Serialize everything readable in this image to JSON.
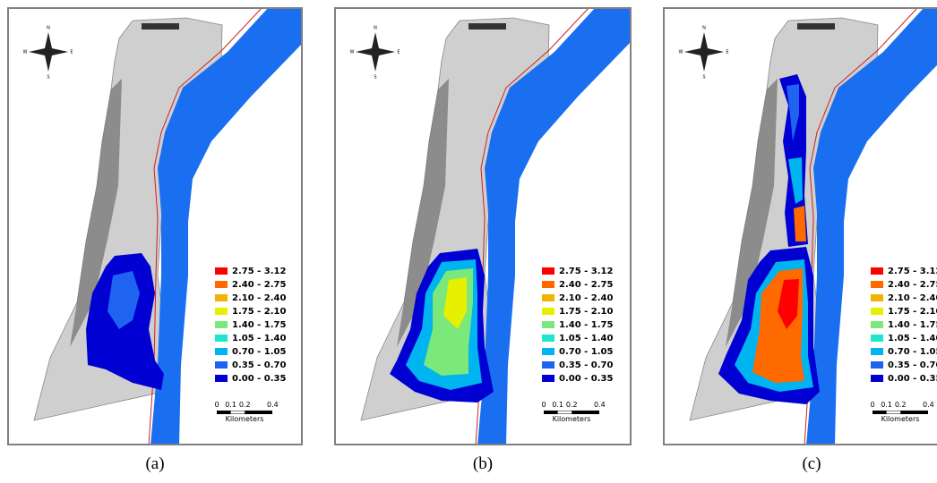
{
  "panels": [
    {
      "caption": "(a)"
    },
    {
      "caption": "(b)"
    },
    {
      "caption": "(c)"
    }
  ],
  "legend": {
    "classes": [
      {
        "label": "2.75 - 3.12",
        "color": "#ff0000"
      },
      {
        "label": "2.40 - 2.75",
        "color": "#ff6a00"
      },
      {
        "label": "2.10 - 2.40",
        "color": "#f0b400"
      },
      {
        "label": "1.75 - 2.10",
        "color": "#e6f000"
      },
      {
        "label": "1.40 - 1.75",
        "color": "#7be87b"
      },
      {
        "label": "1.05 - 1.40",
        "color": "#1ee6c8"
      },
      {
        "label": "0.70 - 1.05",
        "color": "#00b4f0"
      },
      {
        "label": "0.35 - 0.70",
        "color": "#1e64f0"
      },
      {
        "label": "0.00 - 0.35",
        "color": "#0000d2"
      }
    ]
  },
  "scale_bar": {
    "ticks": [
      "0",
      "0.1",
      "0.2",
      "0.4"
    ],
    "unit": "Kilometers"
  },
  "compass": {
    "n": "N",
    "e": "E",
    "s": "S",
    "w": "W"
  }
}
